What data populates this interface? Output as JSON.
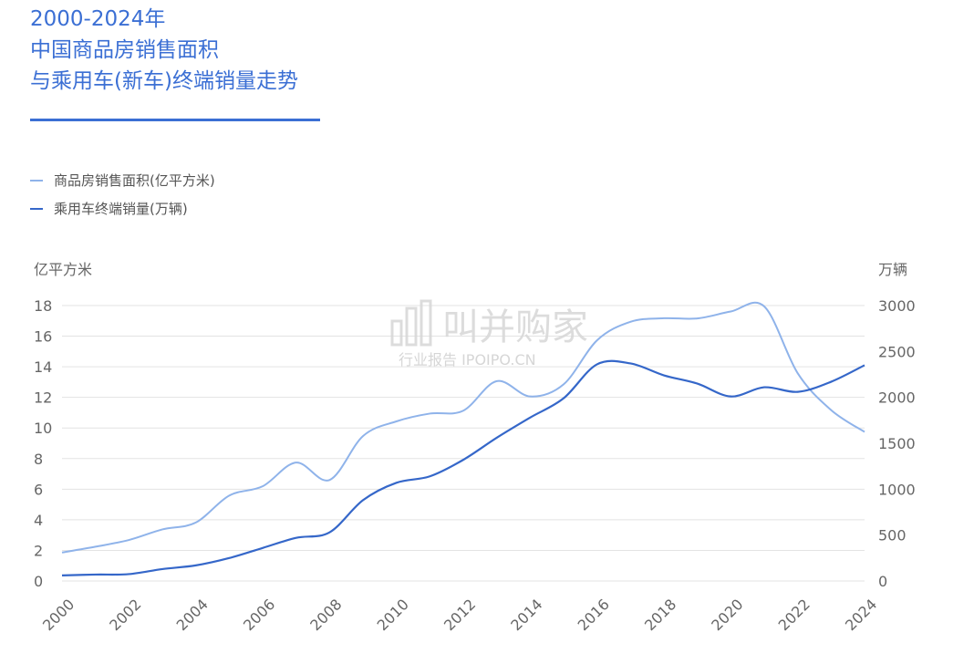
{
  "title_lines": [
    "2000-2024年",
    "中国商品房销售面积",
    "与乘用车(新车)终端销量走势"
  ],
  "colors": {
    "title": "#3b6fd4",
    "series_area": "#8fb3ea",
    "series_cars": "#3567c9",
    "grid": "#e3e3e3",
    "axis_text": "#666666"
  },
  "watermark": {
    "brand": "叫并购家",
    "sub": "行业报告 IPOIPO.CN"
  },
  "chart_data": {
    "type": "line",
    "x": [
      2000,
      2001,
      2002,
      2003,
      2004,
      2005,
      2006,
      2007,
      2008,
      2009,
      2010,
      2011,
      2012,
      2013,
      2014,
      2015,
      2016,
      2017,
      2018,
      2019,
      2020,
      2021,
      2022,
      2023,
      2024
    ],
    "x_tick_labels": [
      "2000",
      "2002",
      "2004",
      "2006",
      "2008",
      "2010",
      "2012",
      "2014",
      "2016",
      "2018",
      "2020",
      "2022",
      "2024"
    ],
    "series": [
      {
        "name": "商品房销售面积(亿平方米)",
        "axis": "left",
        "color": "#8fb3ea",
        "values": [
          1.86,
          2.24,
          2.68,
          3.37,
          3.82,
          5.58,
          6.19,
          7.74,
          6.6,
          9.47,
          10.43,
          10.94,
          11.13,
          13.06,
          12.06,
          12.85,
          15.73,
          16.94,
          17.17,
          17.16,
          17.61,
          17.94,
          13.58,
          11.17,
          9.74
        ]
      },
      {
        "name": "乘用车终端销量(万辆)",
        "axis": "right",
        "color": "#3567c9",
        "values": [
          61,
          70,
          75,
          130,
          170,
          250,
          360,
          470,
          530,
          880,
          1070,
          1140,
          1320,
          1560,
          1780,
          1990,
          2360,
          2370,
          2240,
          2150,
          2010,
          2110,
          2060,
          2170,
          2350
        ]
      }
    ],
    "y_left": {
      "label": "亿平方米",
      "min": 0,
      "max": 18,
      "ticks": [
        0,
        2,
        4,
        6,
        8,
        10,
        12,
        14,
        16,
        18
      ]
    },
    "y_right": {
      "label": "万辆",
      "min": 0,
      "max": 3000,
      "ticks": [
        0,
        500,
        1000,
        1500,
        2000,
        2500,
        3000
      ]
    },
    "grid": true,
    "legend_position": "top-left"
  }
}
